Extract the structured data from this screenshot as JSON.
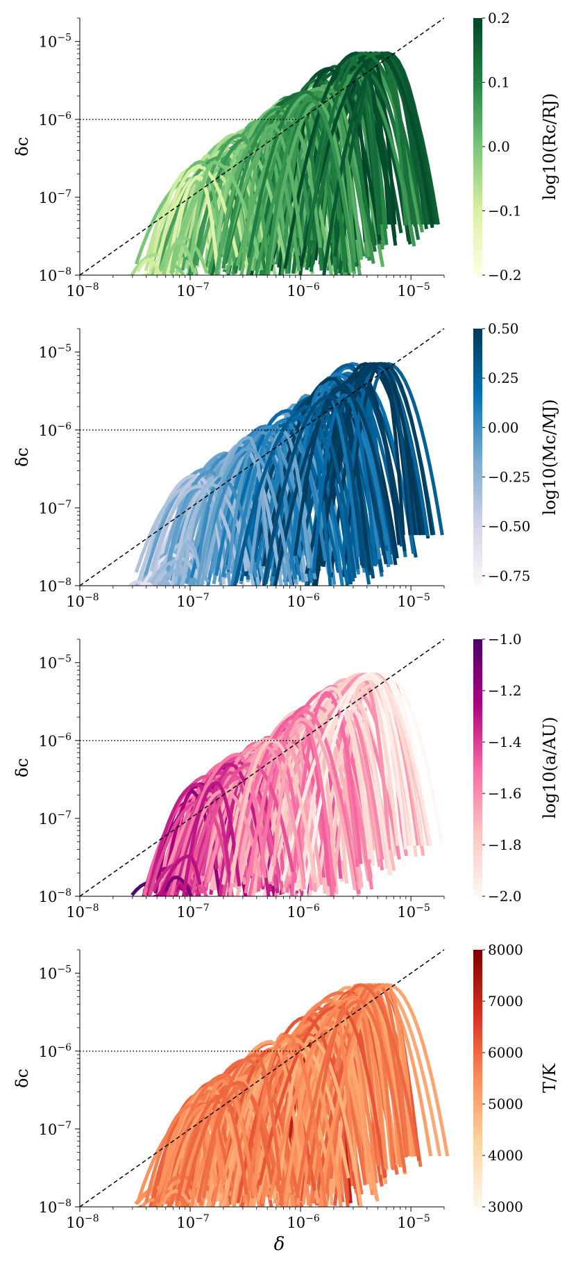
{
  "chart_data": [
    {
      "type": "line",
      "title": "",
      "xlabel": "",
      "ylabel": "δc",
      "xscale": "log",
      "yscale": "log",
      "xlim": [
        1e-08,
        2e-05
      ],
      "ylim": [
        1e-08,
        2e-05
      ],
      "x_tick_labels": [
        "10−8",
        "10−7",
        "10−6",
        "10−5"
      ],
      "y_tick_labels": [
        "10−8",
        "10−7",
        "10−6",
        "10−5"
      ],
      "reference_lines": [
        {
          "style": "dashed",
          "description": "δc = δ",
          "from": [
            1e-08,
            1e-08
          ],
          "to": [
            2e-05,
            2e-05
          ]
        },
        {
          "style": "dotted",
          "description": "δc = 1e-6",
          "from": [
            1e-08,
            1e-06
          ],
          "to": [
            1e-06,
            1e-06
          ]
        }
      ],
      "colorbar": {
        "label": "log10(Rc/RJ)",
        "colormap": "Greens",
        "range": [
          -0.2,
          0.2
        ],
        "tick_labels": [
          "0.2",
          "0.1",
          "0.0",
          "−0.1",
          "−0.2"
        ],
        "colors": [
          "#ffffe5",
          "#d9f0a3",
          "#78c679",
          "#238443",
          "#004529"
        ]
      },
      "series_summary": "~200 curved tracks; each rises from δc≈1e-8 to a peak near δc≈δ and falls again; peaks up to δc≈7e-6 near δ≈2e-6",
      "series_count": 200,
      "seed": 11,
      "value_weight": 0.85
    },
    {
      "type": "line",
      "title": "",
      "xlabel": "",
      "ylabel": "δc",
      "xscale": "log",
      "yscale": "log",
      "xlim": [
        1e-08,
        2e-05
      ],
      "ylim": [
        1e-08,
        2e-05
      ],
      "x_tick_labels": [
        "10−8",
        "10−7",
        "10−6",
        "10−5"
      ],
      "y_tick_labels": [
        "10−8",
        "10−7",
        "10−6",
        "10−5"
      ],
      "reference_lines": [
        {
          "style": "dashed",
          "description": "δc = δ",
          "from": [
            1e-08,
            1e-08
          ],
          "to": [
            2e-05,
            2e-05
          ]
        },
        {
          "style": "dotted",
          "description": "δc = 1e-6",
          "from": [
            1e-08,
            1e-06
          ],
          "to": [
            1e-06,
            1e-06
          ]
        }
      ],
      "colorbar": {
        "label": "log10(Mc/MJ)",
        "colormap": "PuBu",
        "range": [
          -0.8,
          0.5
        ],
        "tick_labels": [
          "0.50",
          "0.25",
          "0.00",
          "−0.25",
          "−0.50",
          "−0.75"
        ],
        "colors": [
          "#fff7fb",
          "#d0d1e6",
          "#74a9cf",
          "#0570b0",
          "#023858"
        ]
      },
      "series_summary": "same tracks coloured by planet mass; colour increases with δ",
      "series_count": 200,
      "seed": 23,
      "value_weight": 1.0
    },
    {
      "type": "line",
      "title": "",
      "xlabel": "",
      "ylabel": "δc",
      "xscale": "log",
      "yscale": "log",
      "xlim": [
        1e-08,
        2e-05
      ],
      "ylim": [
        1e-08,
        2e-05
      ],
      "x_tick_labels": [
        "10−8",
        "10−7",
        "10−6",
        "10−5"
      ],
      "y_tick_labels": [
        "10−8",
        "10−7",
        "10−6",
        "10−5"
      ],
      "reference_lines": [
        {
          "style": "dashed",
          "description": "δc = δ",
          "from": [
            1e-08,
            1e-08
          ],
          "to": [
            2e-05,
            2e-05
          ]
        },
        {
          "style": "dotted",
          "description": "δc = 1e-6",
          "from": [
            1e-08,
            1e-06
          ],
          "to": [
            1e-06,
            1e-06
          ]
        }
      ],
      "colorbar": {
        "label": "log10(a/AU)",
        "colormap": "RdPu",
        "range": [
          -2.0,
          -1.0
        ],
        "tick_labels": [
          "−1.0",
          "−1.2",
          "−1.4",
          "−1.6",
          "−1.8",
          "−2.0"
        ],
        "colors": [
          "#fff7f3",
          "#fcc5c0",
          "#f768a1",
          "#ae017e",
          "#49006a"
        ]
      },
      "series_summary": "same tracks coloured by orbital separation; colour decreases with δ",
      "series_count": 200,
      "seed": 37,
      "value_weight": -0.9
    },
    {
      "type": "line",
      "title": "",
      "xlabel": "δ",
      "ylabel": "δc",
      "xscale": "log",
      "yscale": "log",
      "xlim": [
        1e-08,
        2e-05
      ],
      "ylim": [
        1e-08,
        2e-05
      ],
      "x_tick_labels": [
        "10−8",
        "10−7",
        "10−6",
        "10−5"
      ],
      "y_tick_labels": [
        "10−8",
        "10−7",
        "10−6",
        "10−5"
      ],
      "reference_lines": [
        {
          "style": "dashed",
          "description": "δc = δ",
          "from": [
            1e-08,
            1e-08
          ],
          "to": [
            2e-05,
            2e-05
          ]
        },
        {
          "style": "dotted",
          "description": "δc = 1e-6",
          "from": [
            1e-08,
            1e-06
          ],
          "to": [
            1e-06,
            1e-06
          ]
        }
      ],
      "colorbar": {
        "label": "T/K",
        "colormap": "OrRd",
        "range": [
          3000,
          8000
        ],
        "tick_labels": [
          "8000",
          "7000",
          "6000",
          "5000",
          "4000",
          "3000"
        ],
        "colors": [
          "#fff7ec",
          "#fdd49e",
          "#fc8d59",
          "#d7301f",
          "#7f0000"
        ]
      },
      "series_summary": "same tracks coloured by stellar temperature; mostly 5000-6500 K, a few hot 8000 K tracks near δ≈1e-6 to 1e-5",
      "series_count": 200,
      "seed": 53,
      "value_weight": 0.0
    }
  ]
}
